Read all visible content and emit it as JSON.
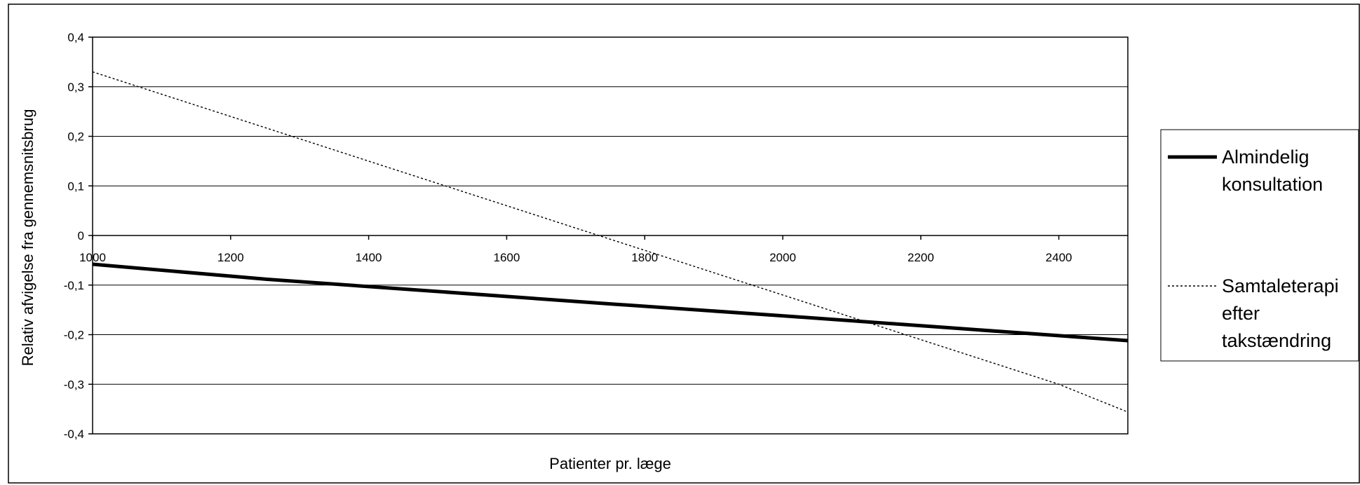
{
  "chart_data": {
    "type": "line",
    "title": "",
    "xlabel": "Patienter pr. læge",
    "ylabel": "Relativ afvigelse fra gennemsnitsbrug",
    "xlim": [
      1000,
      2500
    ],
    "ylim": [
      -0.4,
      0.4
    ],
    "x_ticks": [
      {
        "value": 1000,
        "label": "1000"
      },
      {
        "value": 1200,
        "label": "1200"
      },
      {
        "value": 1400,
        "label": "1400"
      },
      {
        "value": 1600,
        "label": "1600"
      },
      {
        "value": 1800,
        "label": "1800"
      },
      {
        "value": 2000,
        "label": "2000"
      },
      {
        "value": 2200,
        "label": "2200"
      },
      {
        "value": 2400,
        "label": "2400"
      }
    ],
    "y_ticks": [
      {
        "value": 0.4,
        "label": "0,4"
      },
      {
        "value": 0.3,
        "label": "0,3"
      },
      {
        "value": 0.2,
        "label": "0,2"
      },
      {
        "value": 0.1,
        "label": "0,1"
      },
      {
        "value": 0,
        "label": "0"
      },
      {
        "value": -0.1,
        "label": "-0,1"
      },
      {
        "value": -0.2,
        "label": "-0,2"
      },
      {
        "value": -0.3,
        "label": "-0,3"
      },
      {
        "value": -0.4,
        "label": "-0,4"
      }
    ],
    "grid": "horizontal",
    "legend_position": "right",
    "series": [
      {
        "name": "Almindelig konsultation",
        "legend_lines": [
          "Almindelig",
          "konsultation"
        ],
        "style": "solid-thick",
        "color": "#000000",
        "x": [
          1000,
          1250,
          1500,
          1750,
          2000,
          2250,
          2500
        ],
        "y": [
          -0.058,
          -0.088,
          -0.113,
          -0.138,
          -0.162,
          -0.187,
          -0.212
        ]
      },
      {
        "name": "Samtaleterapi efter takstændring",
        "legend_lines": [
          "Samtaleterapi",
          "efter",
          "takstændring"
        ],
        "style": "dotted",
        "color": "#000000",
        "x": [
          1000,
          1100,
          1200,
          1300,
          1400,
          1500,
          1600,
          1700,
          1800,
          1900,
          2000,
          2100,
          2200,
          2300,
          2400,
          2500
        ],
        "y": [
          0.33,
          0.285,
          0.24,
          0.195,
          0.15,
          0.105,
          0.06,
          0.015,
          -0.03,
          -0.075,
          -0.12,
          -0.165,
          -0.21,
          -0.255,
          -0.3,
          -0.356
        ]
      }
    ]
  }
}
